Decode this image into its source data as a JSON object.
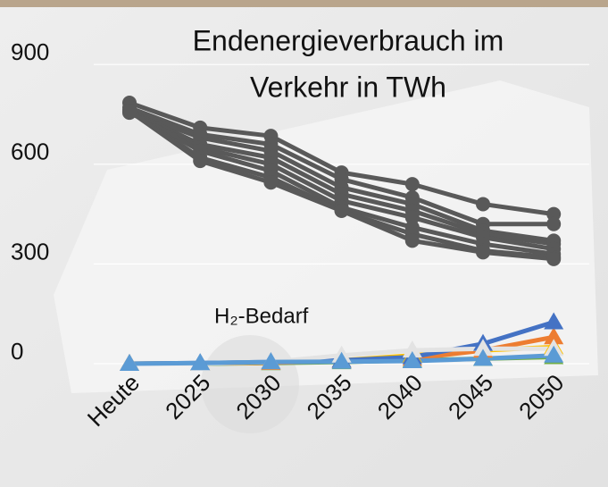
{
  "chart_data": {
    "type": "line",
    "title": [
      "Endenergieverbrauch im",
      "Verkehr in TWh"
    ],
    "annotation": "H₂-Bedarf",
    "categories": [
      "Heute",
      "2025",
      "2030",
      "2035",
      "2040",
      "2045",
      "2050"
    ],
    "ylim": [
      0,
      1000
    ],
    "yticks": [
      0,
      300,
      600,
      900
    ],
    "grid": true,
    "series": [
      {
        "color": "#595959",
        "marker": "circle",
        "values": [
          785,
          710,
          685,
          575,
          540,
          480,
          450
        ]
      },
      {
        "color": "#595959",
        "marker": "circle",
        "values": [
          770,
          690,
          660,
          555,
          500,
          420,
          420
        ]
      },
      {
        "color": "#595959",
        "marker": "circle",
        "values": [
          760,
          680,
          640,
          530,
          480,
          400,
          370
        ]
      },
      {
        "color": "#595959",
        "marker": "circle",
        "values": [
          760,
          660,
          620,
          510,
          460,
          390,
          360
        ]
      },
      {
        "color": "#595959",
        "marker": "circle",
        "values": [
          755,
          650,
          600,
          490,
          440,
          380,
          345
        ]
      },
      {
        "color": "#595959",
        "marker": "circle",
        "values": [
          760,
          640,
          580,
          470,
          410,
          360,
          330
        ]
      },
      {
        "color": "#595959",
        "marker": "circle",
        "values": [
          760,
          620,
          560,
          460,
          390,
          340,
          320
        ]
      },
      {
        "color": "#595959",
        "marker": "circle",
        "values": [
          760,
          610,
          545,
          460,
          370,
          335,
          315
        ]
      },
      {
        "color": "#70ad47",
        "marker": "triangle",
        "values": [
          0,
          0,
          2,
          5,
          10,
          15,
          20
        ]
      },
      {
        "color": "#ffc000",
        "marker": "triangle",
        "values": [
          0,
          1,
          3,
          10,
          25,
          40,
          50
        ]
      },
      {
        "color": "#ed7d31",
        "marker": "triangle",
        "values": [
          0,
          1,
          3,
          8,
          15,
          40,
          80
        ]
      },
      {
        "color": "#4472c4",
        "marker": "triangle",
        "values": [
          0,
          2,
          5,
          10,
          20,
          60,
          125
        ]
      },
      {
        "color": "#e3e3e3",
        "marker": "triangle",
        "values": [
          0,
          0,
          5,
          25,
          40,
          45,
          45
        ]
      },
      {
        "color": "#5b9bd5",
        "marker": "triangle",
        "values": [
          0,
          2,
          5,
          6,
          8,
          15,
          25
        ]
      }
    ]
  }
}
